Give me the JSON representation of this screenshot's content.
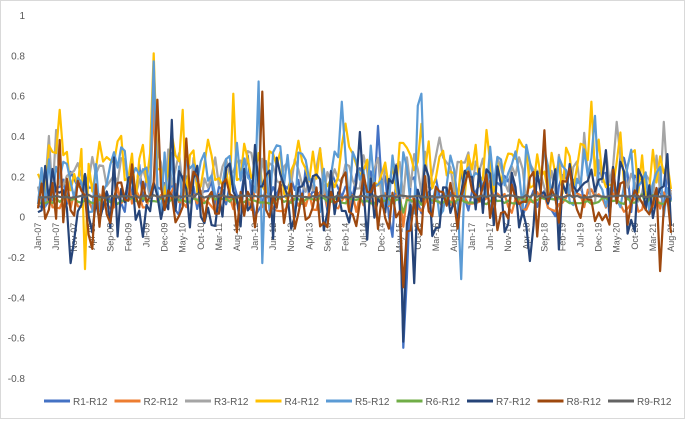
{
  "chart_data": {
    "type": "line",
    "title": "",
    "xlabel": "",
    "ylabel": "",
    "ylim": [
      -0.8,
      1.0
    ],
    "yticks": [
      1,
      0.8,
      0.6,
      0.4,
      0.2,
      0,
      -0.2,
      -0.4,
      -0.6,
      -0.8
    ],
    "ytick_labels": [
      "1",
      "0.8",
      "0.6",
      "0.4",
      "0.2",
      "0",
      "-0.2",
      "-0.4",
      "-0.6",
      "-0.8"
    ],
    "grid": false,
    "legend_position": "bottom",
    "start_month": "2007-01",
    "n_months": 176,
    "x_tick_labels": [
      "Jan-07",
      "Jun-07",
      "Nov-07",
      "Apr-08",
      "Sep-08",
      "Feb-09",
      "Jul-09",
      "Dec-09",
      "May-10",
      "Oct-10",
      "Mar-11",
      "Aug-11",
      "Jan-12",
      "Jun-12",
      "Nov-12",
      "Apr-13",
      "Sep-13",
      "Feb-14",
      "Jul-14",
      "Dec-14",
      "May-15",
      "Oct-15",
      "Mar-16",
      "Aug-16",
      "Jan-17",
      "Jun-17",
      "Nov-17",
      "Apr-18",
      "Sep-18",
      "Feb-19",
      "Jul-19",
      "Dec-19",
      "May-20",
      "Oct-20",
      "Mar-21",
      "Aug-21"
    ],
    "series": [
      {
        "name": "R1-R12",
        "color": "#4472C4",
        "base": 0.12,
        "amp": 0.1,
        "seed": 11,
        "spikes": [
          [
            32,
            0.7
          ],
          [
            94,
            0.45
          ],
          [
            96,
            0.2
          ],
          [
            98,
            -0.1
          ],
          [
            101,
            -0.65
          ],
          [
            102,
            -0.3
          ],
          [
            112,
            0.1
          ]
        ]
      },
      {
        "name": "R2-R12",
        "color": "#ED7D31",
        "base": 0.08,
        "amp": 0.05,
        "seed": 23,
        "spikes": [
          [
            32,
            0.55
          ],
          [
            101,
            -0.05
          ],
          [
            170,
            0.05
          ]
        ]
      },
      {
        "name": "R3-R12",
        "color": "#A5A5A5",
        "base": 0.2,
        "amp": 0.12,
        "seed": 37,
        "spikes": [
          [
            3,
            0.4
          ],
          [
            5,
            0.43
          ],
          [
            32,
            0.75
          ],
          [
            78,
            0.34
          ],
          [
            160,
            0.47
          ],
          [
            173,
            0.47
          ]
        ]
      },
      {
        "name": "R4-R12",
        "color": "#FFC000",
        "base": 0.24,
        "amp": 0.14,
        "seed": 41,
        "spikes": [
          [
            6,
            0.53
          ],
          [
            13,
            -0.26
          ],
          [
            32,
            0.81
          ],
          [
            40,
            0.53
          ],
          [
            54,
            0.61
          ],
          [
            106,
            0.46
          ],
          [
            124,
            0.43
          ],
          [
            153,
            0.57
          ]
        ]
      },
      {
        "name": "R5-R12",
        "color": "#5B9BD5",
        "base": 0.18,
        "amp": 0.16,
        "seed": 53,
        "spikes": [
          [
            32,
            0.77
          ],
          [
            61,
            0.67
          ],
          [
            62,
            -0.23
          ],
          [
            84,
            0.57
          ],
          [
            106,
            0.61
          ],
          [
            105,
            0.55
          ],
          [
            117,
            -0.31
          ],
          [
            154,
            0.5
          ]
        ]
      },
      {
        "name": "R6-R12",
        "color": "#70AD47",
        "base": 0.08,
        "amp": 0.015,
        "seed": 67,
        "spikes": [
          [
            101,
            0.02
          ]
        ]
      },
      {
        "name": "R7-R12",
        "color": "#264478",
        "base": 0.08,
        "amp": 0.17,
        "seed": 71,
        "spikes": [
          [
            9,
            -0.23
          ],
          [
            37,
            0.48
          ],
          [
            89,
            0.42
          ],
          [
            101,
            -0.62
          ],
          [
            104,
            -0.33
          ],
          [
            136,
            -0.22
          ],
          [
            157,
            0.33
          ],
          [
            174,
            0.31
          ]
        ]
      },
      {
        "name": "R8-R12",
        "color": "#9E480E",
        "base": 0.08,
        "amp": 0.14,
        "seed": 83,
        "spikes": [
          [
            6,
            0.38
          ],
          [
            33,
            0.58
          ],
          [
            62,
            0.62
          ],
          [
            101,
            -0.35
          ],
          [
            172,
            -0.27
          ]
        ]
      },
      {
        "name": "R9-R12",
        "color": "#636363",
        "base": 0.1,
        "amp": 0.006,
        "seed": 97,
        "spikes": []
      }
    ]
  }
}
